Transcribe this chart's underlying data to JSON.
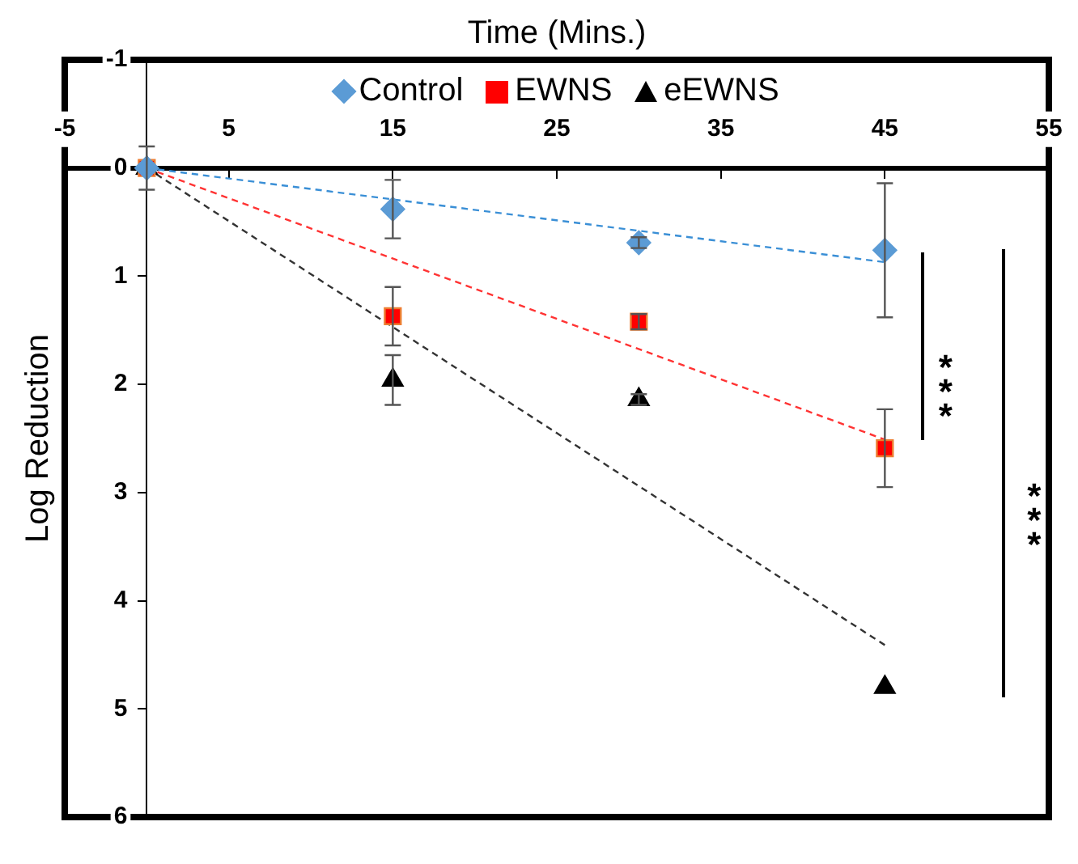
{
  "chart_data": {
    "type": "scatter",
    "xlabel": "Time (Mins.)",
    "ylabel": "Log Reduction",
    "xlim": [
      -5,
      55
    ],
    "xticks": [
      -5,
      5,
      15,
      25,
      35,
      45,
      55
    ],
    "ylim": [
      6,
      -1
    ],
    "yticks": [
      -1,
      0,
      1,
      2,
      3,
      4,
      5,
      6
    ],
    "grid": false,
    "legend": "top",
    "series": [
      {
        "name": "Control",
        "color": "#5b9bd5",
        "marker": "diamond",
        "x": [
          0,
          15,
          30,
          45
        ],
        "values": [
          0,
          0.38,
          0.69,
          0.76
        ],
        "errors": [
          null,
          0.27,
          0.05,
          0.62
        ]
      },
      {
        "name": "EWNS",
        "color": "#ff0000",
        "marker": "square",
        "x": [
          0,
          15,
          30,
          45
        ],
        "values": [
          0,
          1.37,
          1.42,
          2.59
        ],
        "errors": [
          null,
          0.27,
          0.07,
          0.36
        ]
      },
      {
        "name": "eEWNS",
        "color": "#000000",
        "marker": "triangle",
        "x": [
          0,
          15,
          30,
          45
        ],
        "values": [
          0,
          1.96,
          2.14,
          4.8
        ],
        "errors": [
          0.2,
          0.23,
          0.05,
          null
        ]
      },
      {
        "type": "line",
        "color": "#3a8fd6",
        "marker": "none",
        "line_style": "dashed",
        "x": [
          0,
          45
        ],
        "values": [
          0,
          0.87
        ]
      },
      {
        "type": "line",
        "color": "#ff3333",
        "marker": "none",
        "line_style": "dashed",
        "x": [
          0,
          45
        ],
        "values": [
          0,
          2.51
        ]
      },
      {
        "type": "line",
        "color": "#333333",
        "marker": "none",
        "line_style": "dashed",
        "x": [
          0,
          45
        ],
        "values": [
          0,
          4.41
        ]
      }
    ],
    "annotations": [
      "***",
      "***"
    ]
  }
}
